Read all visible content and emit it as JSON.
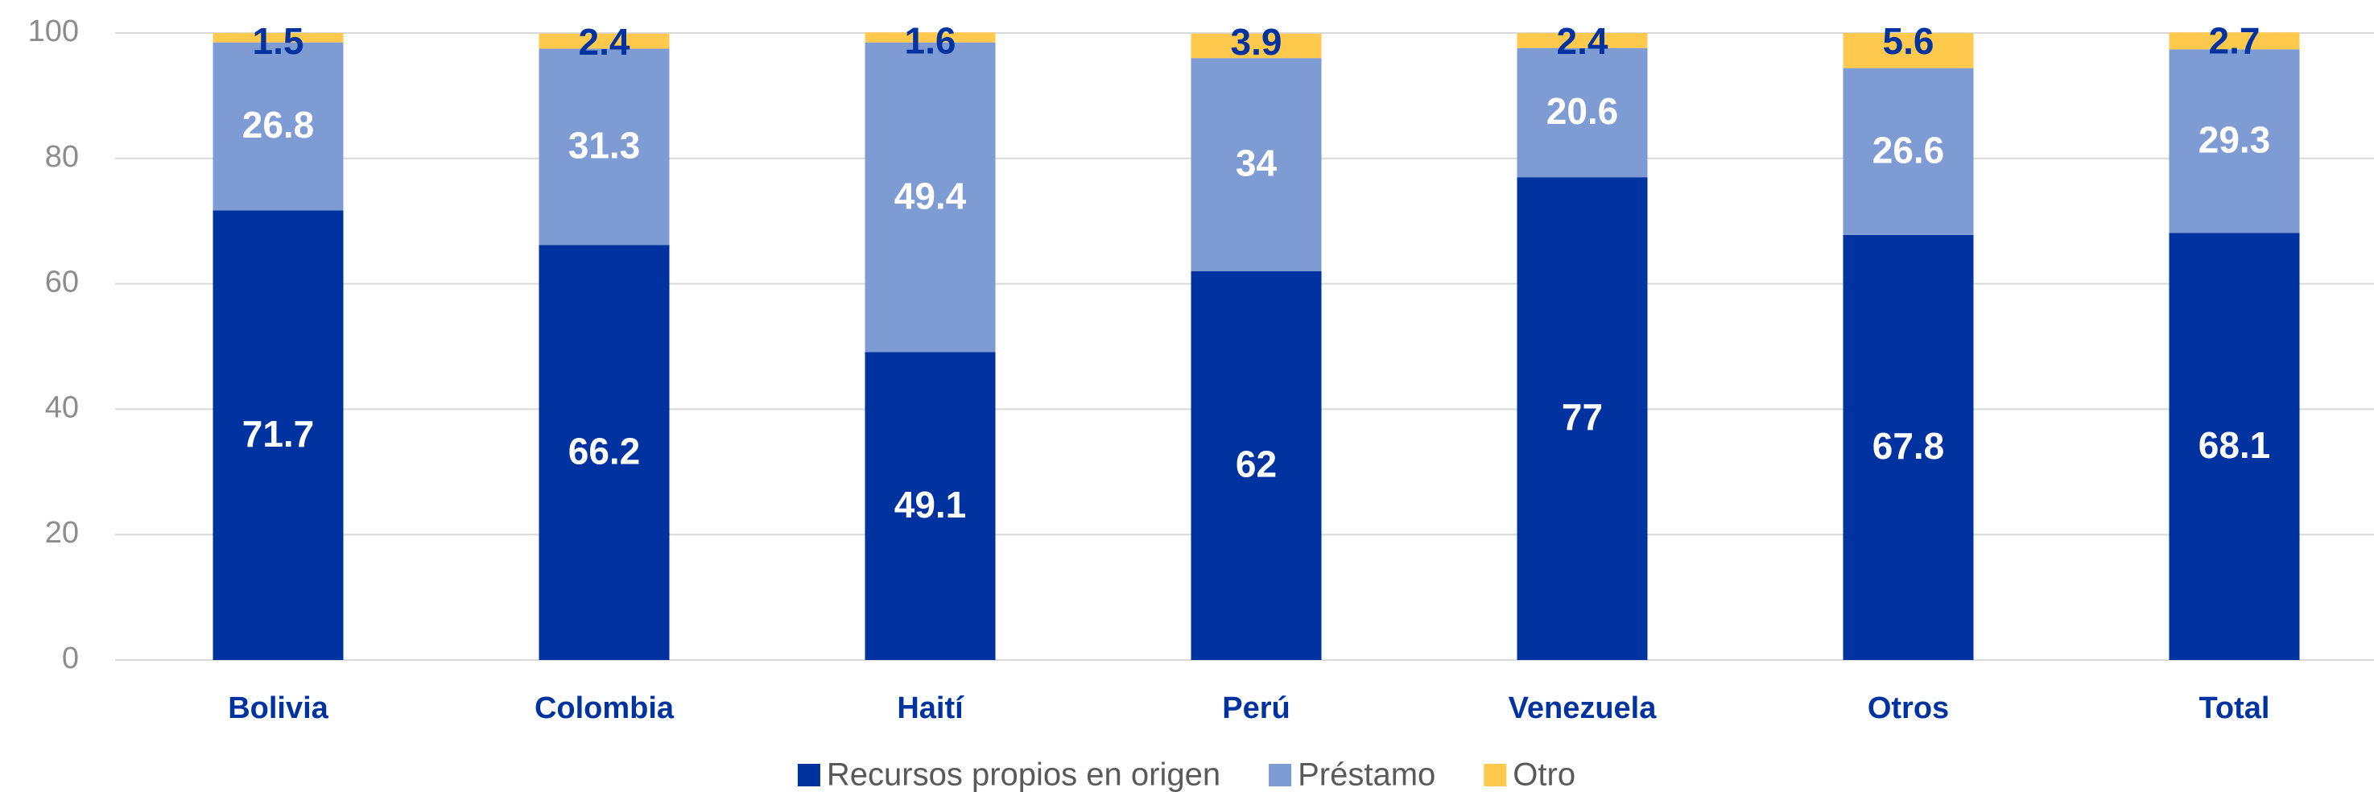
{
  "chart_data": {
    "type": "stacked_bar",
    "categories": [
      "Bolivia",
      "Colombia",
      "Haití",
      "Perú",
      "Venezuela",
      "Otros",
      "Total"
    ],
    "series": [
      {
        "name": "Recursos propios en origen",
        "color": "#0033a0",
        "values": [
          71.7,
          66.2,
          49.1,
          62,
          77,
          67.8,
          68.1
        ]
      },
      {
        "name": "Préstamo",
        "color": "#7f9bd4",
        "values": [
          26.8,
          31.3,
          49.4,
          34,
          20.6,
          26.6,
          29.3
        ]
      },
      {
        "name": "Otro",
        "color": "#ffc94d",
        "values": [
          1.5,
          2.4,
          1.6,
          3.9,
          2.4,
          5.6,
          2.7
        ]
      }
    ],
    "ylim": [
      0,
      100
    ],
    "yticks": [
      0,
      20,
      40,
      60,
      80,
      100
    ],
    "grid": true,
    "legend": "bottom"
  }
}
